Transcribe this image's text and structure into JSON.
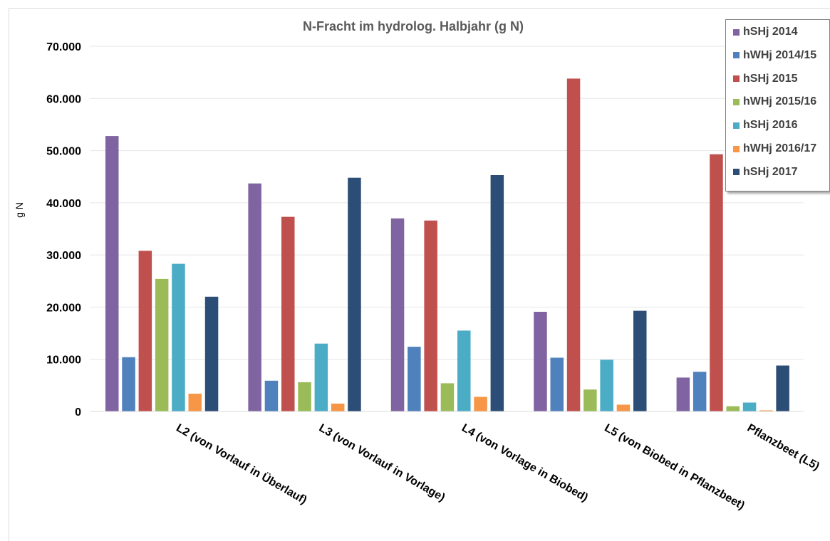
{
  "chart_data": {
    "type": "bar",
    "title": "N-Fracht im hydrolog. Halbjahr (g N)",
    "ylabel": "g N",
    "xlabel": "",
    "ylim": [
      0,
      70000
    ],
    "yticks": [
      "0",
      "10.000",
      "20.000",
      "30.000",
      "40.000",
      "50.000",
      "60.000",
      "70.000"
    ],
    "ytick_values": [
      0,
      10000,
      20000,
      30000,
      40000,
      50000,
      60000,
      70000
    ],
    "grid": true,
    "legend_position": "top-right",
    "categories": [
      "L2 (von Vorlauf in Überlauf)",
      "L3 (von Vorlauf in Vorlage)",
      "L4 (von Vorlage in Biobed)",
      "L5 (von Biobed in Pflanzbeet)",
      "Pflanzbeet (L5)"
    ],
    "series": [
      {
        "name": "hSHj 2014",
        "color": "#8064a2",
        "values": [
          52800,
          43700,
          37000,
          19100,
          6500
        ]
      },
      {
        "name": "hWHj 2014/15",
        "color": "#4f81bd",
        "values": [
          10400,
          5900,
          12400,
          10300,
          7600
        ]
      },
      {
        "name": "hSHj 2015",
        "color": "#c0504d",
        "values": [
          30800,
          37300,
          36600,
          63800,
          49300
        ]
      },
      {
        "name": "hWHj 2015/16",
        "color": "#9bbb59",
        "values": [
          25400,
          5600,
          5400,
          4200,
          1000
        ]
      },
      {
        "name": "hSHj 2016",
        "color": "#4bacc6",
        "values": [
          28300,
          13000,
          15500,
          9900,
          1700
        ]
      },
      {
        "name": "hWHj 2016/17",
        "color": "#f79646",
        "values": [
          3400,
          1500,
          2800,
          1300,
          200
        ]
      },
      {
        "name": "hSHj 2017",
        "color": "#2c4d75",
        "values": [
          22000,
          44800,
          45300,
          19300,
          8800
        ]
      }
    ]
  }
}
